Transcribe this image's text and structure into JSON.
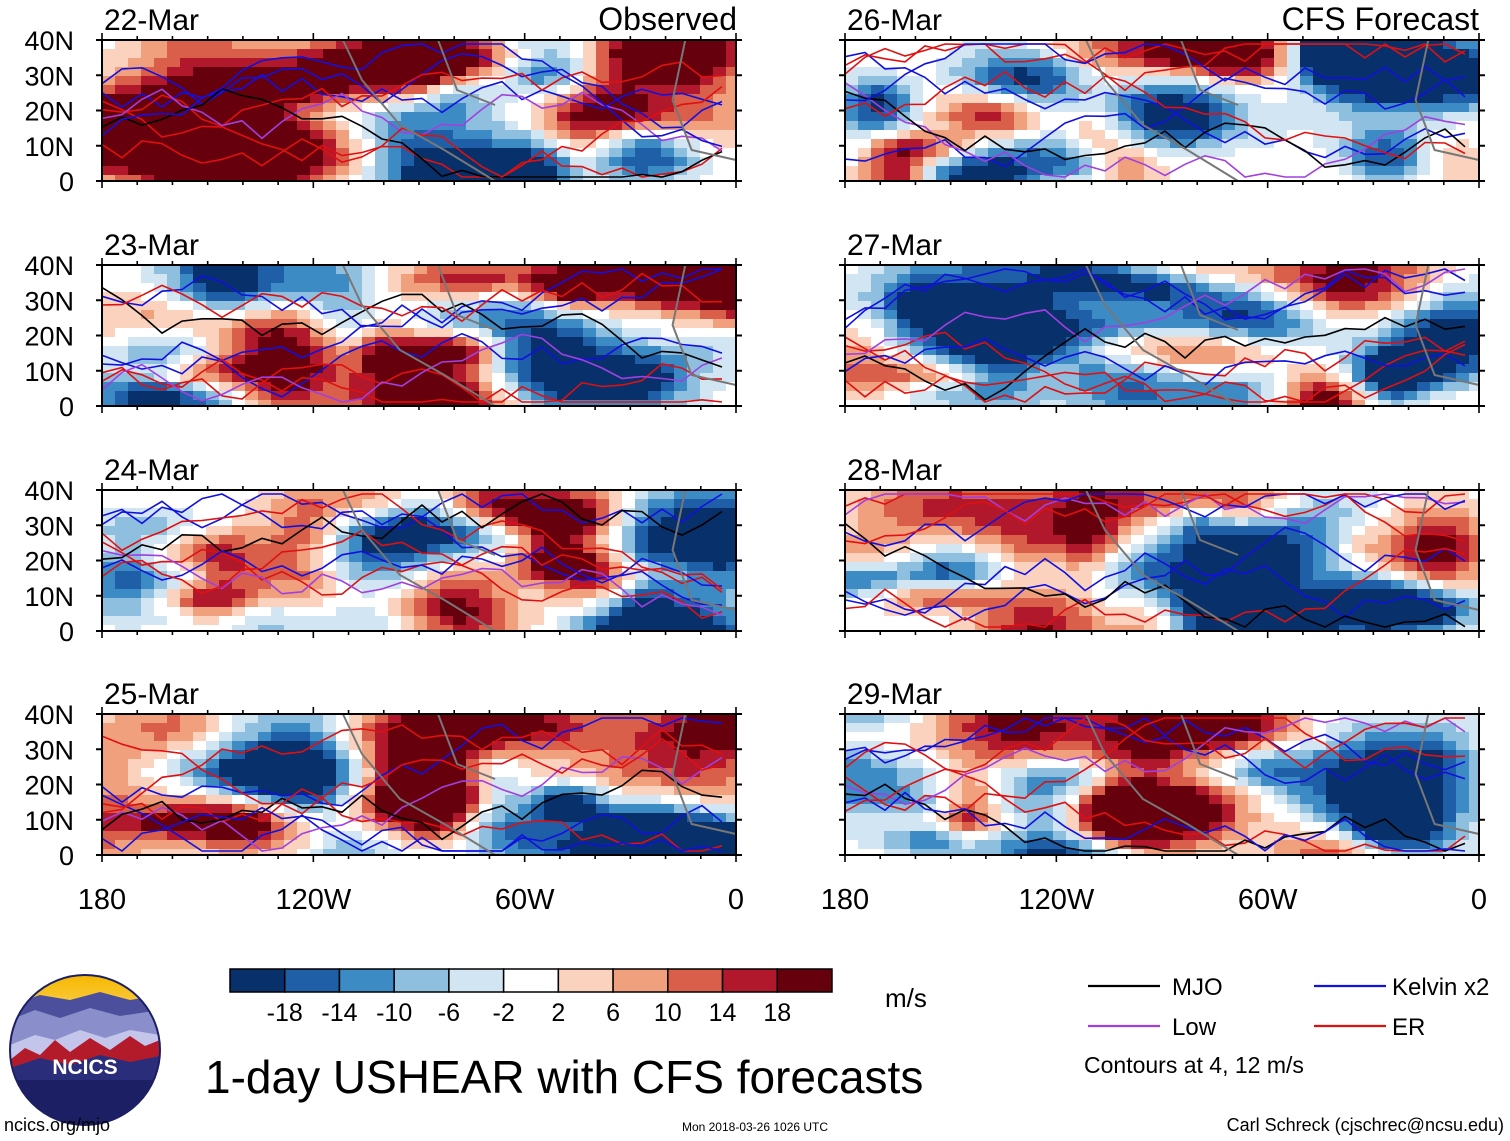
{
  "title": "1-day USHEAR with CFS forecasts",
  "observed_label": "Observed",
  "forecast_label": "CFS Forecast",
  "units": "m/s",
  "contours_note": "Contours at 4, 12 m/s",
  "footer": {
    "left": "ncics.org/mjo",
    "center": "Mon 2018-03-26 1026 UTC",
    "right": "Carl Schreck (cjschrec@ncsu.edu)"
  },
  "logo_text": "NCICS",
  "colors": {
    "mjo": "#000000",
    "low": "#a040e0",
    "kelvin": "#1010e0",
    "er": "#e01010",
    "coast": "#777777",
    "colorbar": [
      "#08306b",
      "#1f5fa8",
      "#3d8bc4",
      "#8fbfde",
      "#d2e5f2",
      "#ffffff",
      "#fbd2bd",
      "#f0a07d",
      "#d95f4a",
      "#b2182b",
      "#67000d"
    ]
  },
  "legend": [
    {
      "name": "MJO",
      "color": "#000000"
    },
    {
      "name": "Kelvin x2",
      "color": "#1010e0"
    },
    {
      "name": "Low",
      "color": "#a040e0"
    },
    {
      "name": "ER",
      "color": "#e01010"
    }
  ],
  "chart_data": {
    "type": "heatmap",
    "variable": "USHEAR (1-day)",
    "x_ticks": [
      "180",
      "120W",
      "60W",
      "0"
    ],
    "y_ticks": [
      "40N",
      "30N",
      "20N",
      "10N",
      "0"
    ],
    "xlim": [
      -180,
      0
    ],
    "ylim": [
      0,
      40
    ],
    "colorbar_levels": [
      -18,
      -14,
      -10,
      -6,
      -2,
      2,
      6,
      10,
      14,
      18
    ],
    "colorbar_labels": [
      "-18",
      "-14",
      "-10",
      "-6",
      "-2",
      "2",
      "6",
      "10",
      "14",
      "18"
    ],
    "panels": [
      {
        "date": "22-Mar",
        "column": "observed",
        "seed": 3
      },
      {
        "date": "23-Mar",
        "column": "observed",
        "seed": 4
      },
      {
        "date": "24-Mar",
        "column": "observed",
        "seed": 5
      },
      {
        "date": "25-Mar",
        "column": "observed",
        "seed": 6
      },
      {
        "date": "26-Mar",
        "column": "forecast",
        "seed": 7
      },
      {
        "date": "27-Mar",
        "column": "forecast",
        "seed": 8
      },
      {
        "date": "28-Mar",
        "column": "forecast",
        "seed": 9
      },
      {
        "date": "29-Mar",
        "column": "forecast",
        "seed": 10
      }
    ]
  }
}
